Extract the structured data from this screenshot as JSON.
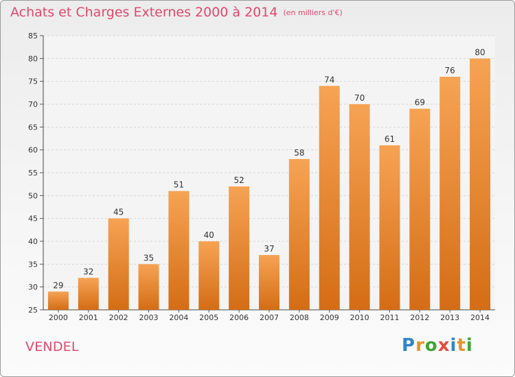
{
  "title": "Achats et Charges Externes 2000 à 2014",
  "unit": "(en milliers d'€)",
  "commune": "VENDEL",
  "brand": {
    "letters": [
      "P",
      "r",
      "o",
      "x",
      "i",
      "t",
      "i"
    ],
    "colors": [
      "#2f86c8",
      "#e8932a",
      "#3fa535",
      "#e84c3d",
      "#2f86c8",
      "#e8932a",
      "#3fa535"
    ]
  },
  "colors": {
    "bar_light": "#f6a354",
    "bar_dark": "#d46d15",
    "title": "#e0486c",
    "grid": "#d6d6d6",
    "text": "#333333"
  },
  "chart_data": {
    "type": "bar",
    "categories": [
      "2000",
      "2001",
      "2002",
      "2003",
      "2004",
      "2005",
      "2006",
      "2007",
      "2008",
      "2009",
      "2010",
      "2011",
      "2012",
      "2013",
      "2014"
    ],
    "values": [
      29,
      32,
      45,
      35,
      51,
      40,
      52,
      37,
      58,
      74,
      70,
      61,
      69,
      76,
      80
    ],
    "xlabel": "",
    "ylabel": "",
    "ylim": [
      25,
      85
    ],
    "yticks": [
      25,
      30,
      35,
      40,
      45,
      50,
      55,
      60,
      65,
      70,
      75,
      80,
      85
    ],
    "grid": "horizontal dashed",
    "data_labels": true
  }
}
